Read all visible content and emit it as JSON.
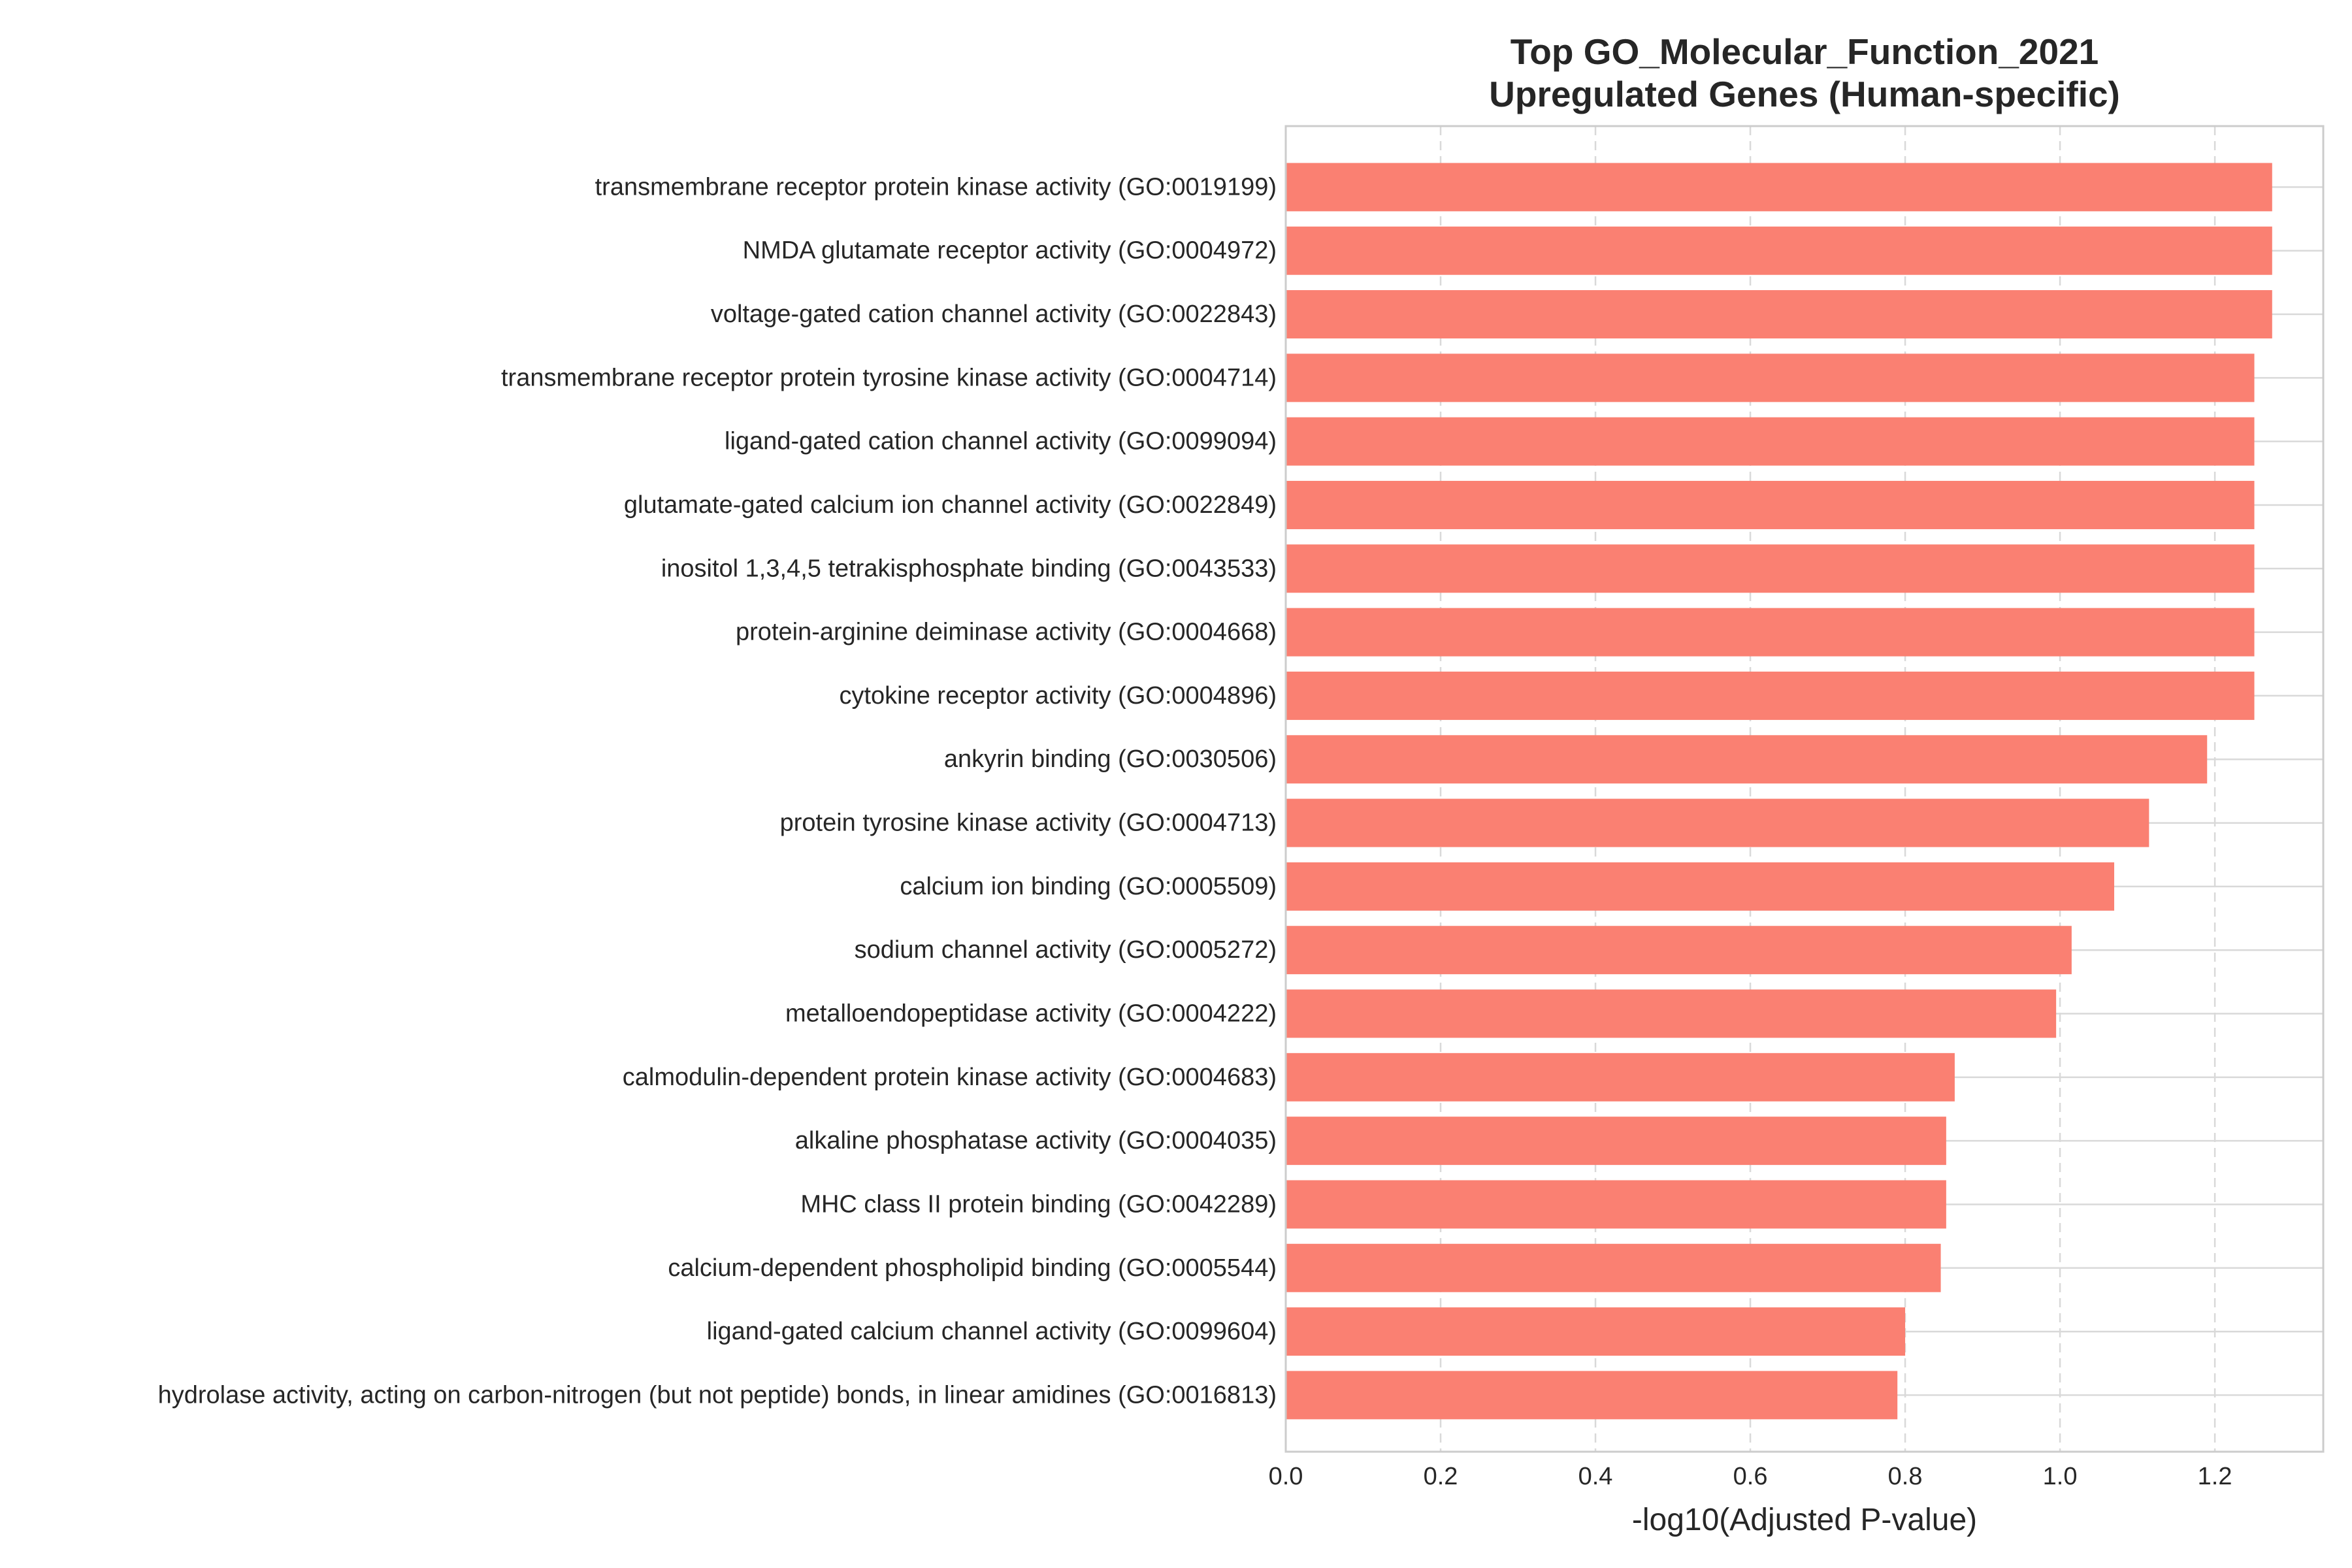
{
  "chart_data": {
    "type": "bar",
    "orientation": "horizontal",
    "title": "Top GO_Molecular_Function_2021\nUpregulated Genes (Human-specific)",
    "title_lines": [
      "Top GO_Molecular_Function_2021",
      "Upregulated Genes (Human-specific)"
    ],
    "xlabel": "-log10(Adjusted P-value)",
    "ylabel": "",
    "xlim": [
      0,
      1.34
    ],
    "xticks": [
      0.0,
      0.2,
      0.4,
      0.6,
      0.8,
      1.0,
      1.2
    ],
    "xtick_labels": [
      "0.0",
      "0.2",
      "0.4",
      "0.6",
      "0.8",
      "1.0",
      "1.2"
    ],
    "grid": true,
    "bar_color": "#fa8072",
    "categories": [
      "transmembrane receptor protein kinase activity (GO:0019199)",
      "NMDA glutamate receptor activity (GO:0004972)",
      "voltage-gated cation channel activity (GO:0022843)",
      "transmembrane receptor protein tyrosine kinase activity (GO:0004714)",
      "ligand-gated cation channel activity (GO:0099094)",
      "glutamate-gated calcium ion channel activity (GO:0022849)",
      "inositol 1,3,4,5 tetrakisphosphate binding (GO:0043533)",
      "protein-arginine deiminase activity (GO:0004668)",
      "cytokine receptor activity (GO:0004896)",
      "ankyrin binding (GO:0030506)",
      "protein tyrosine kinase activity (GO:0004713)",
      "calcium ion binding (GO:0005509)",
      "sodium channel activity (GO:0005272)",
      "metalloendopeptidase activity (GO:0004222)",
      "calmodulin-dependent protein kinase activity (GO:0004683)",
      "alkaline phosphatase activity (GO:0004035)",
      "MHC class II protein binding (GO:0042289)",
      "calcium-dependent phospholipid binding (GO:0005544)",
      "ligand-gated calcium channel activity (GO:0099604)",
      "hydrolase activity, acting on carbon-nitrogen (but not peptide) bonds, in linear amidines (GO:0016813)"
    ],
    "values": [
      1.274,
      1.274,
      1.274,
      1.251,
      1.251,
      1.251,
      1.251,
      1.251,
      1.251,
      1.19,
      1.115,
      1.07,
      1.015,
      0.995,
      0.864,
      0.853,
      0.853,
      0.846,
      0.8,
      0.79
    ]
  }
}
